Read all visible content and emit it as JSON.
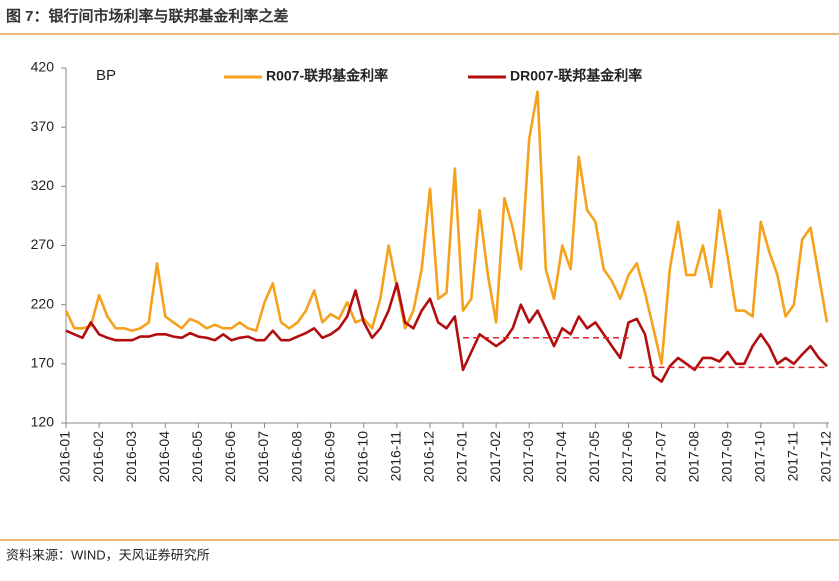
{
  "chart_data": {
    "type": "line",
    "title": "图 7：银行间市场利率与联邦基金利率之差",
    "source": "资料来源：WIND，天风证券研究所",
    "y_unit": "BP",
    "categories": [
      "2016-01",
      null,
      null,
      null,
      "2016-02",
      null,
      null,
      null,
      "2016-03",
      null,
      null,
      null,
      "2016-04",
      null,
      null,
      null,
      "2016-05",
      null,
      null,
      null,
      "2016-06",
      null,
      null,
      null,
      "2016-07",
      null,
      null,
      null,
      "2016-08",
      null,
      null,
      null,
      "2016-09",
      null,
      null,
      null,
      "2016-10",
      null,
      null,
      null,
      "2016-11",
      null,
      null,
      null,
      "2016-12",
      null,
      null,
      null,
      "2017-01",
      null,
      null,
      null,
      "2017-02",
      null,
      null,
      null,
      "2017-03",
      null,
      null,
      null,
      "2017-04",
      null,
      null,
      null,
      "2017-05",
      null,
      null,
      null,
      "2017-06",
      null,
      null,
      null,
      "2017-07",
      null,
      null,
      null,
      "2017-08",
      null,
      null,
      null,
      "2017-09",
      null,
      null,
      null,
      "2017-10",
      null,
      null,
      null,
      "2017-11",
      null,
      null,
      null,
      "2017-12"
    ],
    "series": [
      {
        "name": "R007-联邦基金利率",
        "color": "#f5a11c",
        "values": [
          215,
          200,
          200,
          202,
          228,
          210,
          200,
          200,
          198,
          200,
          205,
          255,
          210,
          205,
          200,
          208,
          205,
          200,
          203,
          200,
          200,
          205,
          200,
          198,
          222,
          238,
          205,
          200,
          205,
          215,
          232,
          205,
          212,
          208,
          222,
          205,
          208,
          200,
          225,
          270,
          235,
          200,
          215,
          250,
          318,
          225,
          230,
          335,
          215,
          225,
          300,
          245,
          205,
          310,
          285,
          250,
          360,
          400,
          250,
          225,
          270,
          250,
          345,
          300,
          290,
          250,
          240,
          225,
          245,
          255,
          230,
          200,
          170,
          250,
          290,
          245,
          245,
          270,
          235,
          300,
          260,
          215,
          215,
          210,
          290,
          265,
          245,
          210,
          220,
          275,
          285,
          245,
          205
        ]
      },
      {
        "name": "DR007-联邦基金利率",
        "color": "#b10e10",
        "values": [
          198,
          195,
          192,
          205,
          195,
          192,
          190,
          190,
          190,
          193,
          193,
          195,
          195,
          193,
          192,
          196,
          193,
          192,
          190,
          195,
          190,
          192,
          193,
          190,
          190,
          198,
          190,
          190,
          193,
          196,
          200,
          192,
          195,
          200,
          210,
          232,
          205,
          192,
          200,
          215,
          238,
          205,
          200,
          215,
          225,
          205,
          200,
          210,
          165,
          180,
          195,
          190,
          185,
          190,
          200,
          220,
          205,
          215,
          200,
          185,
          200,
          195,
          210,
          200,
          205,
          195,
          185,
          175,
          205,
          208,
          195,
          160,
          155,
          168,
          175,
          170,
          165,
          175,
          175,
          172,
          180,
          170,
          170,
          185,
          195,
          185,
          170,
          175,
          170,
          178,
          185,
          175,
          168
        ]
      }
    ],
    "reference_lines": [
      {
        "value": 192,
        "from": "2017-01",
        "to": "2017-06",
        "color": "#e0242a"
      },
      {
        "value": 167,
        "from": "2017-06",
        "to": "2017-12",
        "color": "#e0242a"
      }
    ],
    "ylim": [
      120,
      420
    ],
    "yticks": [
      120,
      170,
      220,
      270,
      320,
      370,
      420
    ],
    "grid": false
  }
}
